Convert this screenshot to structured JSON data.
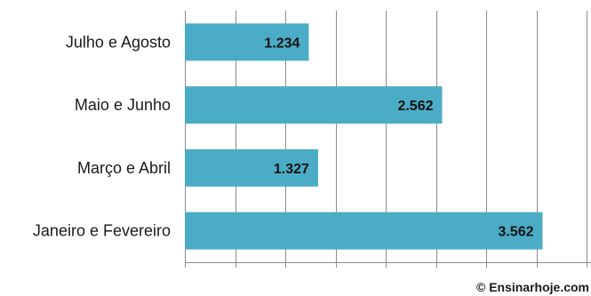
{
  "chart_data": {
    "type": "bar",
    "orientation": "horizontal",
    "categories": [
      "Julho e Agosto",
      "Maio e Junho",
      "Março e Abril",
      "Janeiro e Fevereiro"
    ],
    "values": [
      1234,
      2562,
      1327,
      3562
    ],
    "value_labels": [
      "1.234",
      "2.562",
      "1.327",
      "3.562"
    ],
    "title": "",
    "xlabel": "",
    "ylabel": "",
    "xlim": [
      0,
      4000
    ],
    "grid": true,
    "legend": "none",
    "bar_color": "#4bacc6"
  },
  "watermark": "© Ensinarhoje.com"
}
